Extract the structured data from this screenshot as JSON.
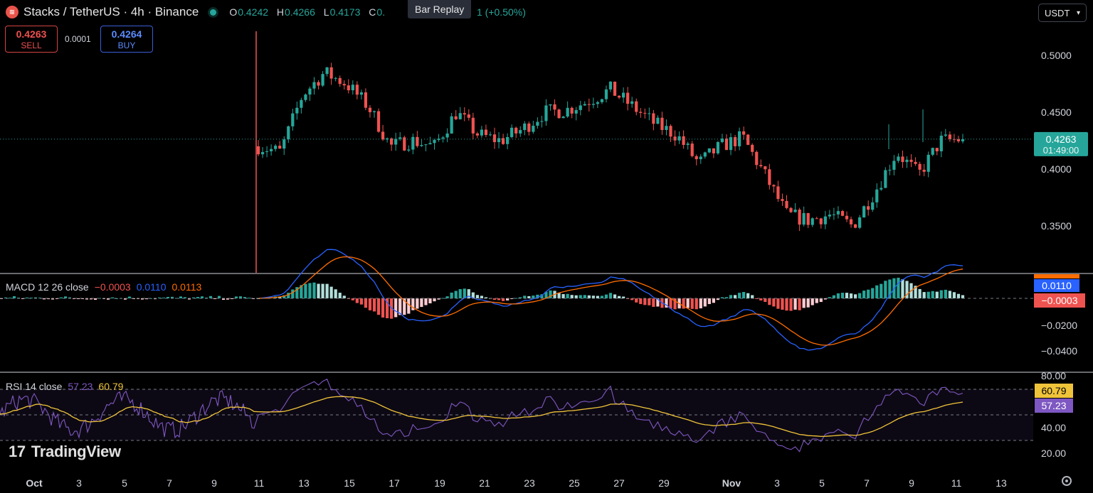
{
  "header": {
    "symbol_title": "Stacks / TetherUS · 4h · Binance",
    "ohlc": [
      {
        "k": "O",
        "v": "0.4242"
      },
      {
        "k": "H",
        "v": "0.4266"
      },
      {
        "k": "L",
        "v": "0.4173"
      },
      {
        "k": "C",
        "v": "0."
      }
    ],
    "change": "1 (+0.50%)",
    "tooltip": "Bar Replay",
    "currency": "USDT"
  },
  "trade": {
    "sell_price": "0.4263",
    "sell_label": "SELL",
    "spread": "0.0001",
    "buy_price": "0.4264",
    "buy_label": "BUY"
  },
  "watermark": "TradingView",
  "price_axis": {
    "ticks": [
      "0.5000",
      "0.4500",
      "0.4000",
      "0.3500"
    ],
    "last_price": "0.4263",
    "countdown": "01:49:00"
  },
  "macd": {
    "label": "MACD 12 26 close",
    "hist": "−0.0003",
    "macd_val": "0.0110",
    "signal_val": "0.0113",
    "axis_ticks": [
      "−0.0200",
      "−0.0400"
    ],
    "badges": [
      "0.0110",
      "−0.0003"
    ]
  },
  "rsi": {
    "label": "RSI 14 close",
    "rsi_val": "57.23",
    "ma_val": "60.79",
    "axis_ticks": [
      "80.00",
      "40.00",
      "20.00"
    ],
    "badges": [
      "60.79",
      "57.23"
    ]
  },
  "time_axis": [
    "Oct",
    "3",
    "5",
    "7",
    "9",
    "11",
    "13",
    "15",
    "17",
    "19",
    "21",
    "23",
    "25",
    "27",
    "29",
    "Nov",
    "3",
    "5",
    "7",
    "9",
    "11",
    "13"
  ],
  "colors": {
    "up": "#26a69a",
    "down": "#ef5350",
    "macd": "#2962ff",
    "signal": "#ff6d00",
    "rsi": "#7e57c2",
    "rsi_ma": "#f0c43a"
  },
  "chart_data": {
    "type": "candlestick",
    "timeframe": "4h",
    "close_path": [
      {
        "date": "10-11",
        "close": 0.42
      },
      {
        "date": "10-12",
        "close": 0.415
      },
      {
        "date": "10-13",
        "close": 0.465
      },
      {
        "date": "10-14",
        "close": 0.485
      },
      {
        "date": "10-15",
        "close": 0.475
      },
      {
        "date": "10-16",
        "close": 0.455
      },
      {
        "date": "10-17",
        "close": 0.42
      },
      {
        "date": "10-18",
        "close": 0.425
      },
      {
        "date": "10-19",
        "close": 0.42
      },
      {
        "date": "10-20",
        "close": 0.45
      },
      {
        "date": "10-21",
        "close": 0.43
      },
      {
        "date": "10-22",
        "close": 0.425
      },
      {
        "date": "10-23",
        "close": 0.435
      },
      {
        "date": "10-24",
        "close": 0.45
      },
      {
        "date": "10-25",
        "close": 0.452
      },
      {
        "date": "10-26",
        "close": 0.46
      },
      {
        "date": "10-27",
        "close": 0.47
      },
      {
        "date": "10-28",
        "close": 0.455
      },
      {
        "date": "10-29",
        "close": 0.44
      },
      {
        "date": "10-30",
        "close": 0.43
      },
      {
        "date": "10-31",
        "close": 0.405
      },
      {
        "date": "11-01",
        "close": 0.42
      },
      {
        "date": "11-02",
        "close": 0.428
      },
      {
        "date": "11-03",
        "close": 0.395
      },
      {
        "date": "11-04",
        "close": 0.36
      },
      {
        "date": "11-05",
        "close": 0.355
      },
      {
        "date": "11-06",
        "close": 0.36
      },
      {
        "date": "11-07",
        "close": 0.35
      },
      {
        "date": "11-08",
        "close": 0.38
      },
      {
        "date": "11-08",
        "close": 0.415
      },
      {
        "date": "11-09",
        "close": 0.395
      },
      {
        "date": "11-10",
        "close": 0.425
      },
      {
        "date": "11-11",
        "close": 0.4263
      }
    ]
  }
}
